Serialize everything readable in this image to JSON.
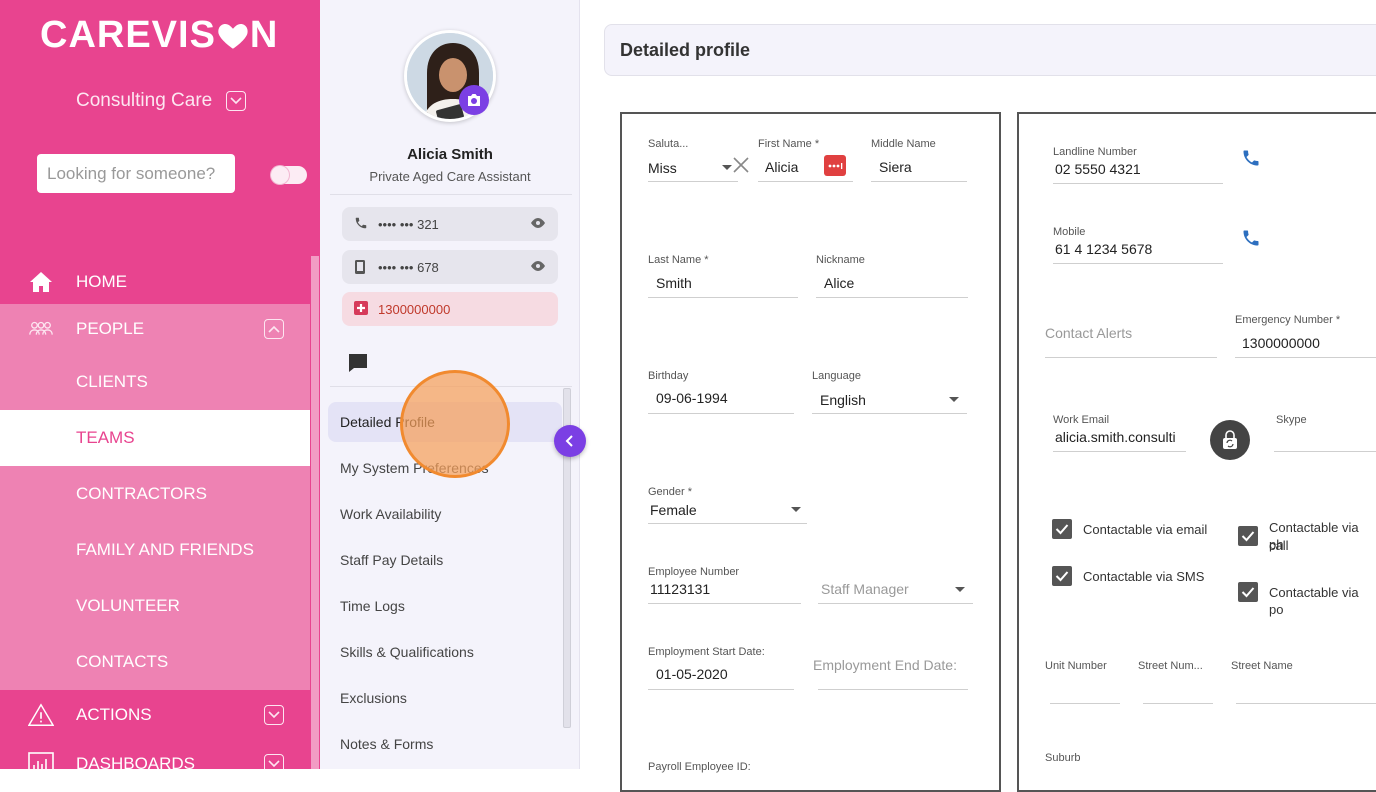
{
  "app": {
    "logo_main": "CAREVIS",
    "logo_tail": "N",
    "brand_color": "#e8448f",
    "accent_color": "#7b3fe4"
  },
  "sidebar": {
    "org_name": "Consulting Care",
    "search_placeholder": "Looking for someone?",
    "nav": [
      {
        "label": "HOME",
        "icon": "home-icon"
      },
      {
        "label": "PEOPLE",
        "icon": "people-icon"
      },
      {
        "label": "CLIENTS"
      },
      {
        "label": "TEAMS"
      },
      {
        "label": "CONTRACTORS"
      },
      {
        "label": "FAMILY AND FRIENDS"
      },
      {
        "label": "VOLUNTEER"
      },
      {
        "label": "CONTACTS"
      },
      {
        "label": "ACTIONS",
        "icon": "warning-icon"
      },
      {
        "label": "DASHBOARDS",
        "icon": "dashboard-icon"
      }
    ]
  },
  "profile": {
    "name": "Alicia Smith",
    "role": "Private Aged Care Assistant",
    "phone_masked": "•••• ••• 321",
    "mobile_masked": "•••• ••• 678",
    "emergency": "1300000000",
    "menu": [
      "Detailed Profile",
      "My System Preferences",
      "Work Availability",
      "Staff Pay Details",
      "Time Logs",
      "Skills & Qualifications",
      "Exclusions",
      "Notes & Forms"
    ]
  },
  "main": {
    "title": "Detailed profile",
    "left": {
      "salutation_label": "Saluta...",
      "salutation_value": "Miss",
      "first_name_label": "First Name *",
      "first_name_value": "Alicia",
      "middle_name_label": "Middle Name",
      "middle_name_value": "Siera",
      "last_name_label": "Last Name *",
      "last_name_value": "Smith",
      "nickname_label": "Nickname",
      "nickname_value": "Alice",
      "birthday_label": "Birthday",
      "birthday_value": "09-06-1994",
      "language_label": "Language",
      "language_value": "English",
      "gender_label": "Gender *",
      "gender_value": "Female",
      "employee_number_label": "Employee Number",
      "employee_number_value": "11123131",
      "staff_manager_placeholder": "Staff Manager",
      "start_date_label": "Employment Start Date:",
      "start_date_value": "01-05-2020",
      "end_date_placeholder": "Employment End Date:",
      "payroll_label": "Payroll Employee ID:"
    },
    "right": {
      "landline_label": "Landline Number",
      "landline_value": "02 5550 4321",
      "mobile_label": "Mobile",
      "mobile_value": "61 4 1234 5678",
      "contact_alerts_placeholder": "Contact Alerts",
      "emergency_label": "Emergency Number *",
      "emergency_value": "1300000000",
      "work_email_label": "Work Email",
      "work_email_value": "alicia.smith.consulti",
      "skype_label": "Skype",
      "cb_email": "Contactable via email",
      "cb_phone_line1": "Contactable via ph",
      "cb_phone_line2": "call",
      "cb_sms": "Contactable via SMS",
      "cb_post": "Contactable via po",
      "unit_label": "Unit Number",
      "street_num_label": "Street Num...",
      "street_name_label": "Street Name",
      "suburb_label": "Suburb"
    }
  }
}
